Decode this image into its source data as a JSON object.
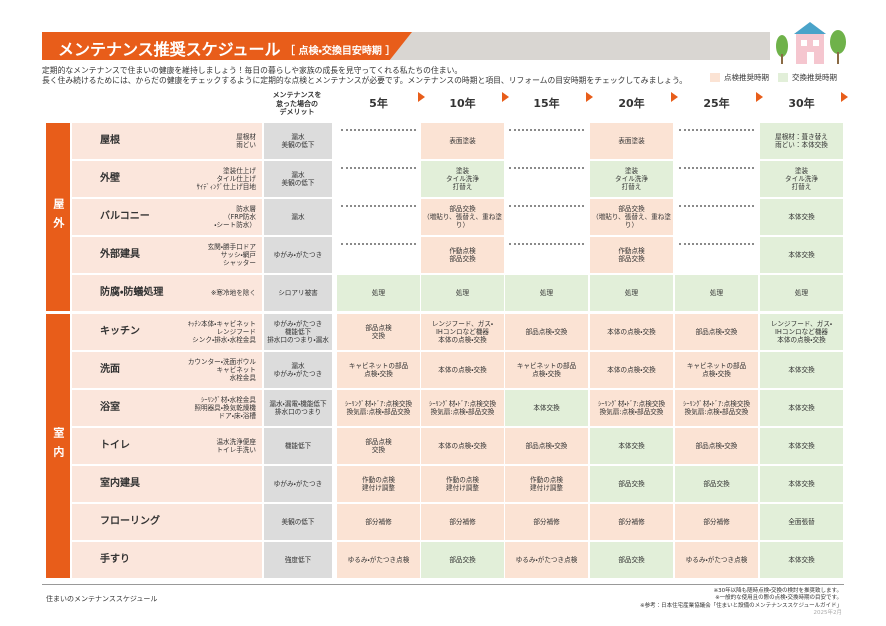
{
  "header": {
    "title": "メンテナンス推奨スケジュール",
    "subtitle": "［ 点検・交換目安時期 ］"
  },
  "intro": [
    "定期的なメンテナンスで住まいの健康を維持しましょう！毎日の暮らしや家族の成長を見守ってくれる私たちの住まい。",
    "長く住み続けるためには、からだの健康をチェックするように定期的な点検とメンテナンスが必要です。メンテナンスの時期と項目、リフォームの目安時期をチェックしてみましょう。"
  ],
  "legend": [
    {
      "label": "点検推奨時期",
      "color": "#fbe3d4"
    },
    {
      "label": "交換推奨時期",
      "color": "#e2efd9"
    }
  ],
  "columns": {
    "demerit": "メンテナンスを\n怠った場合の\nデメリット",
    "years": [
      "5年",
      "10年",
      "15年",
      "20年",
      "25年",
      "30年"
    ]
  },
  "groups": [
    {
      "label": "屋外",
      "rows": [
        {
          "name": "屋根",
          "parts": "屋根材\n雨どい",
          "demerit": "漏水\n美観の低下",
          "cells": [
            null,
            {
              "text": "表面塗装",
              "color": "#fbe3d4"
            },
            null,
            {
              "text": "表面塗装",
              "color": "#fbe3d4"
            },
            null,
            {
              "text": "屋根材：葺き替え\n雨どい：本体交換",
              "color": "#e2efd9"
            }
          ]
        },
        {
          "name": "外壁",
          "parts": "塗装仕上げ\nタイル仕上げ\nｻｲﾃﾞｨﾝｸﾞ仕上げ目地",
          "demerit": "漏水\n美観の低下",
          "cells": [
            null,
            {
              "text": "塗装\nタイル洗浄\n打替え",
              "color": "#e2efd9"
            },
            null,
            {
              "text": "塗装\nタイル洗浄\n打替え",
              "color": "#e2efd9"
            },
            null,
            {
              "text": "塗装\nタイル洗浄\n打替え",
              "color": "#e2efd9"
            }
          ]
        },
        {
          "name": "バルコニー",
          "parts": "防水層\n（FRP防水\n・シート防水）",
          "demerit": "漏水",
          "cells": [
            null,
            {
              "text": "部品交換\n（増貼り、張替え、重ね塗り）",
              "color": "#fbe3d4"
            },
            null,
            {
              "text": "部品交換\n（増貼り、張替え、重ね塗り）",
              "color": "#fbe3d4"
            },
            null,
            {
              "text": "本体交換",
              "color": "#e2efd9"
            }
          ]
        },
        {
          "name": "外部建具",
          "parts": "玄関・勝手口ドア\nサッシ・網戸\nシャッター",
          "demerit": "ゆがみ・がたつき",
          "cells": [
            null,
            {
              "text": "作動点検\n部品交換",
              "color": "#fbe3d4"
            },
            null,
            {
              "text": "作動点検\n部品交換",
              "color": "#fbe3d4"
            },
            null,
            {
              "text": "本体交換",
              "color": "#e2efd9"
            }
          ]
        },
        {
          "name": "防腐・防蟻処理",
          "parts": "※寒冷地を除く",
          "demerit": "シロアリ被害",
          "cells": [
            {
              "text": "処理",
              "color": "#e2efd9"
            },
            {
              "text": "処理",
              "color": "#e2efd9"
            },
            {
              "text": "処理",
              "color": "#e2efd9"
            },
            {
              "text": "処理",
              "color": "#e2efd9"
            },
            {
              "text": "処理",
              "color": "#e2efd9"
            },
            {
              "text": "処理",
              "color": "#e2efd9"
            }
          ]
        }
      ]
    },
    {
      "label": "室内",
      "rows": [
        {
          "name": "キッチン",
          "parts": "ｷｯﾁﾝ本体・キャビネット\nレンジフード\nシンク・排水・水栓金具",
          "demerit": "ゆがみ・がたつき\n機能低下\n排水口のつまり・漏水",
          "cells": [
            {
              "text": "部品点検\n交換",
              "color": "#fbe3d4"
            },
            {
              "text": "レンジフード、ガス・\nIHコンロなど機器\n本体の点検・交換",
              "color": "#fbe3d4"
            },
            {
              "text": "部品点検・交換",
              "color": "#fbe3d4"
            },
            {
              "text": "本体の点検・交換",
              "color": "#fbe3d4"
            },
            {
              "text": "部品点検・交換",
              "color": "#fbe3d4"
            },
            {
              "text": "レンジフード、ガス・\nIHコンロなど機器\n本体の点検・交換",
              "color": "#e2efd9"
            }
          ]
        },
        {
          "name": "洗面",
          "parts": "カウンター・洗面ボウル\nキャビネット\n水栓金具",
          "demerit": "漏水\nゆがみ・がたつき",
          "cells": [
            {
              "text": "キャビネットの部品\n点検・交換",
              "color": "#fbe3d4"
            },
            {
              "text": "本体の点検・交換",
              "color": "#fbe3d4"
            },
            {
              "text": "キャビネットの部品\n点検・交換",
              "color": "#fbe3d4"
            },
            {
              "text": "本体の点検・交換",
              "color": "#fbe3d4"
            },
            {
              "text": "キャビネットの部品\n点検・交換",
              "color": "#fbe3d4"
            },
            {
              "text": "本体交換",
              "color": "#e2efd9"
            }
          ]
        },
        {
          "name": "浴室",
          "parts": "ｼｰﾘﾝｸﾞ材・水栓金具\n照明器具・換気乾燥機\nドア・床・浴槽",
          "demerit": "漏水・漏電・機能低下\n排水口のつまり",
          "cells": [
            {
              "text": "ｼｰﾘﾝｸﾞ材・ﾄﾞｱ:点検交換\n換気扇:点検・部品交換",
              "color": "#fbe3d4"
            },
            {
              "text": "ｼｰﾘﾝｸﾞ材・ﾄﾞｱ:点検交換\n換気扇:点検・部品交換",
              "color": "#fbe3d4"
            },
            {
              "text": "本体交換",
              "color": "#e2efd9"
            },
            {
              "text": "ｼｰﾘﾝｸﾞ材・ﾄﾞｱ:点検交換\n換気扇:点検・部品交換",
              "color": "#fbe3d4"
            },
            {
              "text": "ｼｰﾘﾝｸﾞ材・ﾄﾞｱ:点検交換\n換気扇:点検・部品交換",
              "color": "#fbe3d4"
            },
            {
              "text": "本体交換",
              "color": "#e2efd9"
            }
          ]
        },
        {
          "name": "トイレ",
          "parts": "温水洗浄便座\nトイレ手洗い",
          "demerit": "機能低下",
          "cells": [
            {
              "text": "部品点検\n交換",
              "color": "#fbe3d4"
            },
            {
              "text": "本体の点検・交換",
              "color": "#fbe3d4"
            },
            {
              "text": "部品点検・交換",
              "color": "#fbe3d4"
            },
            {
              "text": "本体交換",
              "color": "#e2efd9"
            },
            {
              "text": "部品点検・交換",
              "color": "#fbe3d4"
            },
            {
              "text": "本体交換",
              "color": "#e2efd9"
            }
          ]
        },
        {
          "name": "室内建具",
          "demerit": "ゆがみ・がたつき",
          "cells": [
            {
              "text": "作動の点検\n建付け調整",
              "color": "#fbe3d4"
            },
            {
              "text": "作動の点検\n建付け調整",
              "color": "#fbe3d4"
            },
            {
              "text": "作動の点検\n建付け調整",
              "color": "#fbe3d4"
            },
            {
              "text": "部品交換",
              "color": "#e2efd9"
            },
            {
              "text": "部品交換",
              "color": "#e2efd9"
            },
            {
              "text": "本体交換",
              "color": "#e2efd9"
            }
          ]
        },
        {
          "name": "フローリング",
          "demerit": "美観の低下",
          "cells": [
            {
              "text": "部分補修",
              "color": "#fbe3d4"
            },
            {
              "text": "部分補修",
              "color": "#fbe3d4"
            },
            {
              "text": "部分補修",
              "color": "#fbe3d4"
            },
            {
              "text": "部分補修",
              "color": "#fbe3d4"
            },
            {
              "text": "部分補修",
              "color": "#fbe3d4"
            },
            {
              "text": "全面張替",
              "color": "#e2efd9"
            }
          ]
        },
        {
          "name": "手すり",
          "demerit": "強度低下",
          "cells": [
            {
              "text": "ゆるみ・がたつき点検",
              "color": "#fbe3d4"
            },
            {
              "text": "部品交換",
              "color": "#e2efd9"
            },
            {
              "text": "ゆるみ・がたつき点検",
              "color": "#fbe3d4"
            },
            {
              "text": "部品交換",
              "color": "#e2efd9"
            },
            {
              "text": "ゆるみ・がたつき点検",
              "color": "#fbe3d4"
            },
            {
              "text": "本体交換",
              "color": "#e2efd9"
            }
          ]
        }
      ]
    }
  ],
  "footer": {
    "left": "住まいのメンテナンススケジュール",
    "notes": [
      "※30年以降も随時点検・交換の検討を推奨致します。",
      "※一般的な使用且の際の点検・交換時期の目安です。",
      "※参考：日本住宅産業協議会「住まいと設備のメンテナンススケジュールガイド」"
    ],
    "date": "2025年2月"
  }
}
